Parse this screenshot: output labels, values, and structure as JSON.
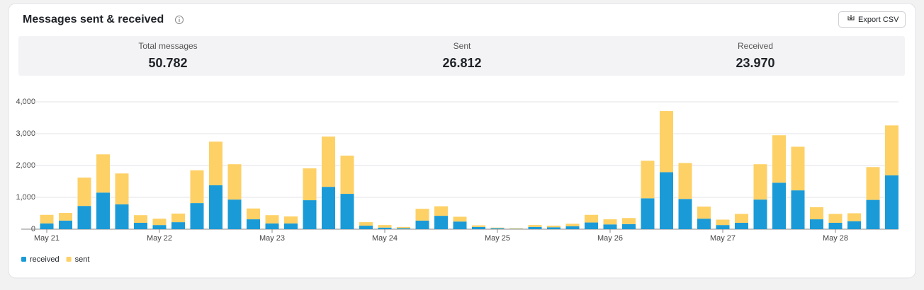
{
  "header": {
    "title": "Messages sent & received",
    "export": "Export CSV"
  },
  "stats": [
    {
      "label": "Total messages",
      "value": "50.782"
    },
    {
      "label": "Sent",
      "value": "26.812"
    },
    {
      "label": "Received",
      "value": "23.970"
    }
  ],
  "chart_data": {
    "type": "stacked-bar",
    "categories": [
      "May 21",
      null,
      null,
      null,
      null,
      null,
      "May 22",
      null,
      null,
      null,
      null,
      null,
      "May 23",
      null,
      null,
      null,
      null,
      null,
      "May 24",
      null,
      null,
      null,
      null,
      null,
      "May 25",
      null,
      null,
      null,
      null,
      null,
      "May 26",
      null,
      null,
      null,
      null,
      null,
      "May 27",
      null,
      null,
      null,
      null,
      null,
      "May 28",
      null,
      null,
      null
    ],
    "series": [
      {
        "name": "received",
        "color": "#1a9bd7",
        "values": [
          180,
          270,
          730,
          1150,
          780,
          200,
          130,
          220,
          820,
          1380,
          930,
          310,
          180,
          180,
          910,
          1330,
          1110,
          110,
          50,
          30,
          270,
          420,
          240,
          70,
          30,
          10,
          70,
          60,
          90,
          210,
          150,
          160,
          970,
          1790,
          950,
          330,
          130,
          200,
          930,
          1460,
          1220,
          310,
          200,
          250,
          920,
          1690
        ]
      },
      {
        "name": "sent",
        "color": "#fdd166",
        "values": [
          270,
          240,
          890,
          1200,
          970,
          240,
          200,
          270,
          1030,
          1370,
          1110,
          340,
          260,
          220,
          1000,
          1580,
          1200,
          110,
          80,
          40,
          370,
          300,
          150,
          50,
          20,
          20,
          60,
          50,
          80,
          240,
          160,
          190,
          1180,
          1920,
          1130,
          380,
          170,
          280,
          1110,
          1490,
          1370,
          380,
          280,
          250,
          1030,
          1570
        ]
      }
    ],
    "ylim": [
      0,
      4000
    ],
    "yticks": [
      0,
      {
        "value": 1000,
        "label": "1,000"
      },
      {
        "value": 2000,
        "label": "2,000"
      },
      {
        "value": 3000,
        "label": "3,000"
      },
      {
        "value": 4000,
        "label": "4,000"
      }
    ],
    "grid": true
  }
}
